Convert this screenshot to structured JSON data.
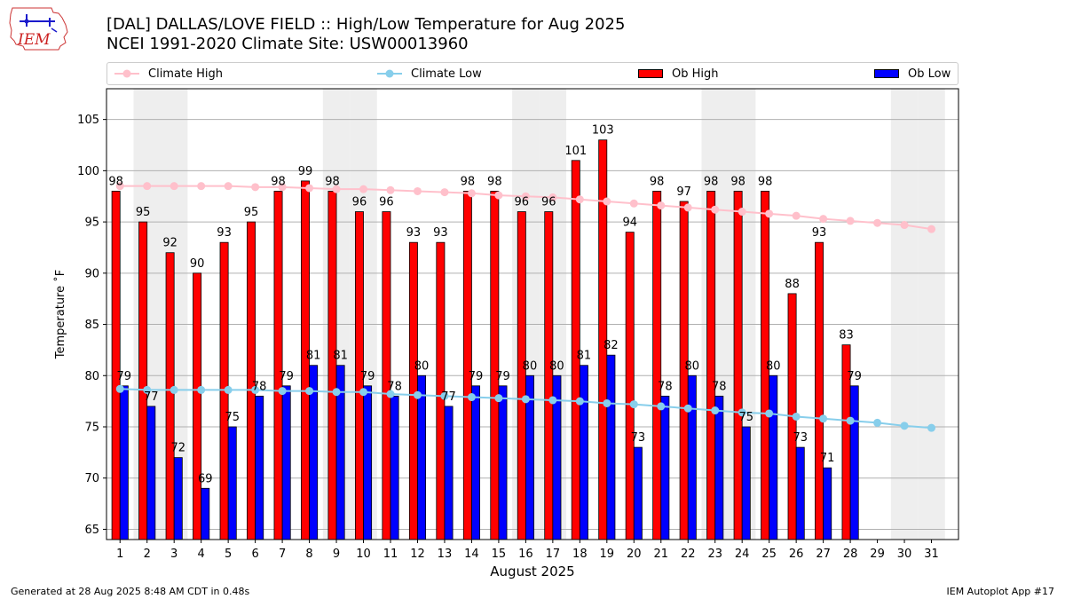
{
  "header": {
    "title_line1": "[DAL] DALLAS/LOVE FIELD :: High/Low Temperature for Aug 2025",
    "title_line2": "NCEI 1991-2020 Climate Site: USW00013960",
    "logo_text": "IEM"
  },
  "legend": {
    "climate_high": "Climate High",
    "climate_low": "Climate Low",
    "ob_high": "Ob High",
    "ob_low": "Ob Low"
  },
  "colors": {
    "ob_high": "#ff0000",
    "ob_low": "#0000ff",
    "climate_high": "#ffc0cb",
    "climate_low": "#87ceeb",
    "weekend_shade": "#eeeeee",
    "grid": "#b0b0b0"
  },
  "chart_data": {
    "type": "bar",
    "xlabel": "August 2025",
    "ylabel": "Temperature ˚F",
    "ylim": [
      64,
      108
    ],
    "yticks": [
      65,
      70,
      75,
      80,
      85,
      90,
      95,
      100,
      105
    ],
    "grid": "horizontal",
    "legend_placement": "top",
    "categories": [
      "1",
      "2",
      "3",
      "4",
      "5",
      "6",
      "7",
      "8",
      "9",
      "10",
      "11",
      "12",
      "13",
      "14",
      "15",
      "16",
      "17",
      "18",
      "19",
      "20",
      "21",
      "22",
      "23",
      "24",
      "25",
      "26",
      "27",
      "28",
      "29",
      "30",
      "31"
    ],
    "weekend_days": [
      2,
      3,
      9,
      10,
      16,
      17,
      23,
      24,
      30,
      31
    ],
    "series": [
      {
        "name": "Ob High",
        "kind": "bar",
        "values": [
          98,
          95,
          92,
          90,
          93,
          95,
          98,
          99,
          98,
          96,
          96,
          93,
          93,
          98,
          98,
          96,
          96,
          101,
          103,
          94,
          98,
          97,
          98,
          98,
          98,
          88,
          93,
          83,
          null,
          null,
          null
        ]
      },
      {
        "name": "Ob Low",
        "kind": "bar",
        "values": [
          79,
          77,
          72,
          69,
          75,
          78,
          79,
          81,
          81,
          79,
          78,
          80,
          77,
          79,
          79,
          80,
          80,
          81,
          82,
          73,
          78,
          80,
          78,
          75,
          80,
          73,
          71,
          79,
          null,
          null,
          null
        ]
      },
      {
        "name": "Climate High",
        "kind": "line",
        "values": [
          98.5,
          98.5,
          98.5,
          98.5,
          98.5,
          98.4,
          98.4,
          98.3,
          98.2,
          98.2,
          98.1,
          98.0,
          97.9,
          97.8,
          97.6,
          97.5,
          97.4,
          97.2,
          97.0,
          96.8,
          96.6,
          96.4,
          96.2,
          96.0,
          95.8,
          95.6,
          95.3,
          95.1,
          94.9,
          94.7,
          94.3
        ]
      },
      {
        "name": "Climate Low",
        "kind": "line",
        "values": [
          78.7,
          78.6,
          78.6,
          78.6,
          78.6,
          78.6,
          78.5,
          78.5,
          78.4,
          78.4,
          78.2,
          78.1,
          78.0,
          77.9,
          77.8,
          77.7,
          77.6,
          77.5,
          77.3,
          77.2,
          77.0,
          76.8,
          76.6,
          76.4,
          76.3,
          76.0,
          75.8,
          75.6,
          75.4,
          75.1,
          74.9
        ]
      }
    ]
  },
  "footer": {
    "left": "Generated at 28 Aug 2025 8:48 AM CDT in 0.48s",
    "right": "IEM Autoplot App #17"
  }
}
